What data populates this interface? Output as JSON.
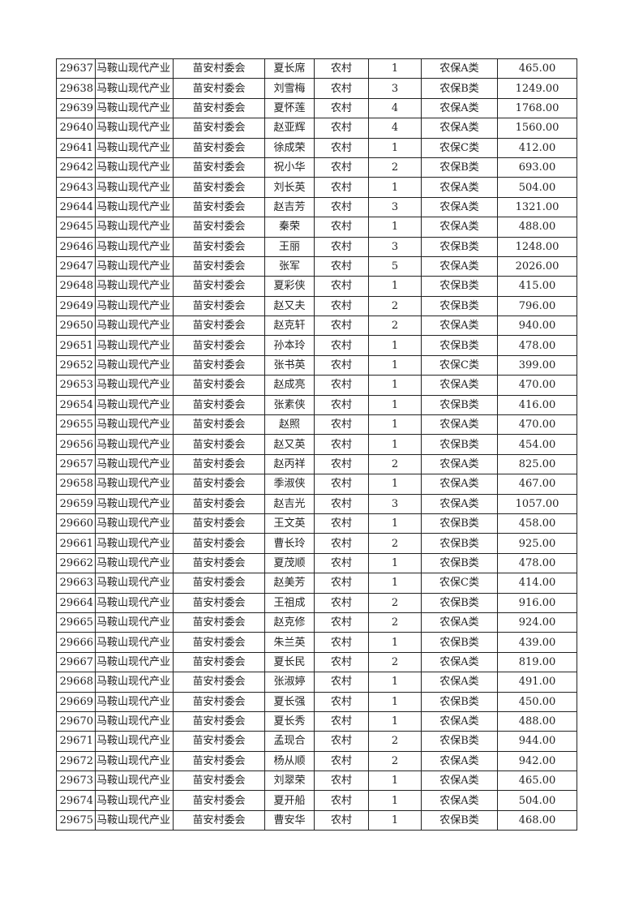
{
  "table": {
    "columns_count": 8,
    "rows": [
      [
        "29637",
        "马鞍山现代产业",
        "苗安村委会",
        "夏长席",
        "农村",
        "1",
        "农保A类",
        "465.00"
      ],
      [
        "29638",
        "马鞍山现代产业",
        "苗安村委会",
        "刘雪梅",
        "农村",
        "3",
        "农保B类",
        "1249.00"
      ],
      [
        "29639",
        "马鞍山现代产业",
        "苗安村委会",
        "夏怀莲",
        "农村",
        "4",
        "农保A类",
        "1768.00"
      ],
      [
        "29640",
        "马鞍山现代产业",
        "苗安村委会",
        "赵亚辉",
        "农村",
        "4",
        "农保A类",
        "1560.00"
      ],
      [
        "29641",
        "马鞍山现代产业",
        "苗安村委会",
        "徐成荣",
        "农村",
        "1",
        "农保C类",
        "412.00"
      ],
      [
        "29642",
        "马鞍山现代产业",
        "苗安村委会",
        "祝小华",
        "农村",
        "2",
        "农保B类",
        "693.00"
      ],
      [
        "29643",
        "马鞍山现代产业",
        "苗安村委会",
        "刘长英",
        "农村",
        "1",
        "农保A类",
        "504.00"
      ],
      [
        "29644",
        "马鞍山现代产业",
        "苗安村委会",
        "赵吉芳",
        "农村",
        "3",
        "农保A类",
        "1321.00"
      ],
      [
        "29645",
        "马鞍山现代产业",
        "苗安村委会",
        "秦荣",
        "农村",
        "1",
        "农保A类",
        "488.00"
      ],
      [
        "29646",
        "马鞍山现代产业",
        "苗安村委会",
        "王丽",
        "农村",
        "3",
        "农保B类",
        "1248.00"
      ],
      [
        "29647",
        "马鞍山现代产业",
        "苗安村委会",
        "张军",
        "农村",
        "5",
        "农保A类",
        "2026.00"
      ],
      [
        "29648",
        "马鞍山现代产业",
        "苗安村委会",
        "夏彩侠",
        "农村",
        "1",
        "农保B类",
        "415.00"
      ],
      [
        "29649",
        "马鞍山现代产业",
        "苗安村委会",
        "赵又夫",
        "农村",
        "2",
        "农保B类",
        "796.00"
      ],
      [
        "29650",
        "马鞍山现代产业",
        "苗安村委会",
        "赵克轩",
        "农村",
        "2",
        "农保A类",
        "940.00"
      ],
      [
        "29651",
        "马鞍山现代产业",
        "苗安村委会",
        "孙本玲",
        "农村",
        "1",
        "农保B类",
        "478.00"
      ],
      [
        "29652",
        "马鞍山现代产业",
        "苗安村委会",
        "张书英",
        "农村",
        "1",
        "农保C类",
        "399.00"
      ],
      [
        "29653",
        "马鞍山现代产业",
        "苗安村委会",
        "赵成亮",
        "农村",
        "1",
        "农保A类",
        "470.00"
      ],
      [
        "29654",
        "马鞍山现代产业",
        "苗安村委会",
        "张素侠",
        "农村",
        "1",
        "农保B类",
        "416.00"
      ],
      [
        "29655",
        "马鞍山现代产业",
        "苗安村委会",
        "赵照",
        "农村",
        "1",
        "农保A类",
        "470.00"
      ],
      [
        "29656",
        "马鞍山现代产业",
        "苗安村委会",
        "赵又英",
        "农村",
        "1",
        "农保B类",
        "454.00"
      ],
      [
        "29657",
        "马鞍山现代产业",
        "苗安村委会",
        "赵丙祥",
        "农村",
        "2",
        "农保A类",
        "825.00"
      ],
      [
        "29658",
        "马鞍山现代产业",
        "苗安村委会",
        "季淑侠",
        "农村",
        "1",
        "农保A类",
        "467.00"
      ],
      [
        "29659",
        "马鞍山现代产业",
        "苗安村委会",
        "赵吉光",
        "农村",
        "3",
        "农保A类",
        "1057.00"
      ],
      [
        "29660",
        "马鞍山现代产业",
        "苗安村委会",
        "王文英",
        "农村",
        "1",
        "农保B类",
        "458.00"
      ],
      [
        "29661",
        "马鞍山现代产业",
        "苗安村委会",
        "曹长玲",
        "农村",
        "2",
        "农保B类",
        "925.00"
      ],
      [
        "29662",
        "马鞍山现代产业",
        "苗安村委会",
        "夏茂顺",
        "农村",
        "1",
        "农保B类",
        "478.00"
      ],
      [
        "29663",
        "马鞍山现代产业",
        "苗安村委会",
        "赵美芳",
        "农村",
        "1",
        "农保C类",
        "414.00"
      ],
      [
        "29664",
        "马鞍山现代产业",
        "苗安村委会",
        "王祖成",
        "农村",
        "2",
        "农保B类",
        "916.00"
      ],
      [
        "29665",
        "马鞍山现代产业",
        "苗安村委会",
        "赵克修",
        "农村",
        "2",
        "农保A类",
        "924.00"
      ],
      [
        "29666",
        "马鞍山现代产业",
        "苗安村委会",
        "朱兰英",
        "农村",
        "1",
        "农保B类",
        "439.00"
      ],
      [
        "29667",
        "马鞍山现代产业",
        "苗安村委会",
        "夏长民",
        "农村",
        "2",
        "农保A类",
        "819.00"
      ],
      [
        "29668",
        "马鞍山现代产业",
        "苗安村委会",
        "张淑婷",
        "农村",
        "1",
        "农保A类",
        "491.00"
      ],
      [
        "29669",
        "马鞍山现代产业",
        "苗安村委会",
        "夏长强",
        "农村",
        "1",
        "农保B类",
        "450.00"
      ],
      [
        "29670",
        "马鞍山现代产业",
        "苗安村委会",
        "夏长秀",
        "农村",
        "1",
        "农保A类",
        "488.00"
      ],
      [
        "29671",
        "马鞍山现代产业",
        "苗安村委会",
        "孟现合",
        "农村",
        "2",
        "农保B类",
        "944.00"
      ],
      [
        "29672",
        "马鞍山现代产业",
        "苗安村委会",
        "杨从顺",
        "农村",
        "2",
        "农保A类",
        "942.00"
      ],
      [
        "29673",
        "马鞍山现代产业",
        "苗安村委会",
        "刘翠荣",
        "农村",
        "1",
        "农保A类",
        "465.00"
      ],
      [
        "29674",
        "马鞍山现代产业",
        "苗安村委会",
        "夏开船",
        "农村",
        "1",
        "农保A类",
        "504.00"
      ],
      [
        "29675",
        "马鞍山现代产业",
        "苗安村委会",
        "曹安华",
        "农村",
        "1",
        "农保B类",
        "468.00"
      ]
    ]
  }
}
